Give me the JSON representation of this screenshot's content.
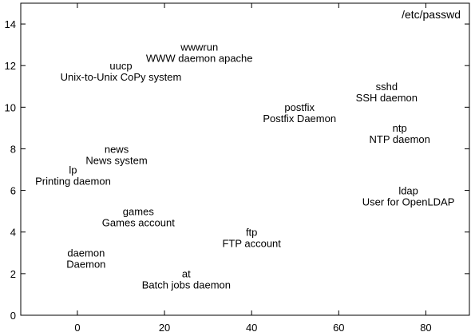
{
  "chart_data": {
    "type": "scatter",
    "title": "/etc/passwd",
    "xlabel": "",
    "ylabel": "",
    "xlim": [
      -13,
      90
    ],
    "ylim": [
      0,
      15
    ],
    "xticks": [
      0,
      20,
      40,
      60,
      80
    ],
    "yticks": [
      0,
      2,
      4,
      6,
      8,
      10,
      12,
      14
    ],
    "grid": false,
    "legend": "top-right",
    "points": [
      {
        "name": "wwwrun",
        "comment": "WWW daemon apache",
        "x": 28,
        "y": 12.6
      },
      {
        "name": "uucp",
        "comment": "Unix-to-Unix CoPy system",
        "x": 10,
        "y": 11.7
      },
      {
        "name": "sshd",
        "comment": "SSH daemon",
        "x": 71,
        "y": 10.7
      },
      {
        "name": "postfix",
        "comment": "Postfix Daemon",
        "x": 51,
        "y": 9.7
      },
      {
        "name": "ntp",
        "comment": "NTP daemon",
        "x": 74,
        "y": 8.7
      },
      {
        "name": "news",
        "comment": "News system",
        "x": 9,
        "y": 7.7
      },
      {
        "name": "lp",
        "comment": "Printing daemon",
        "x": -1,
        "y": 6.7
      },
      {
        "name": "ldap",
        "comment": "User for OpenLDAP",
        "x": 76,
        "y": 5.7
      },
      {
        "name": "games",
        "comment": "Games account",
        "x": 14,
        "y": 4.7
      },
      {
        "name": "ftp",
        "comment": "FTP account",
        "x": 40,
        "y": 3.7
      },
      {
        "name": "daemon",
        "comment": "Daemon",
        "x": 2,
        "y": 2.7
      },
      {
        "name": "at",
        "comment": "Batch jobs daemon",
        "x": 25,
        "y": 1.7
      }
    ]
  }
}
